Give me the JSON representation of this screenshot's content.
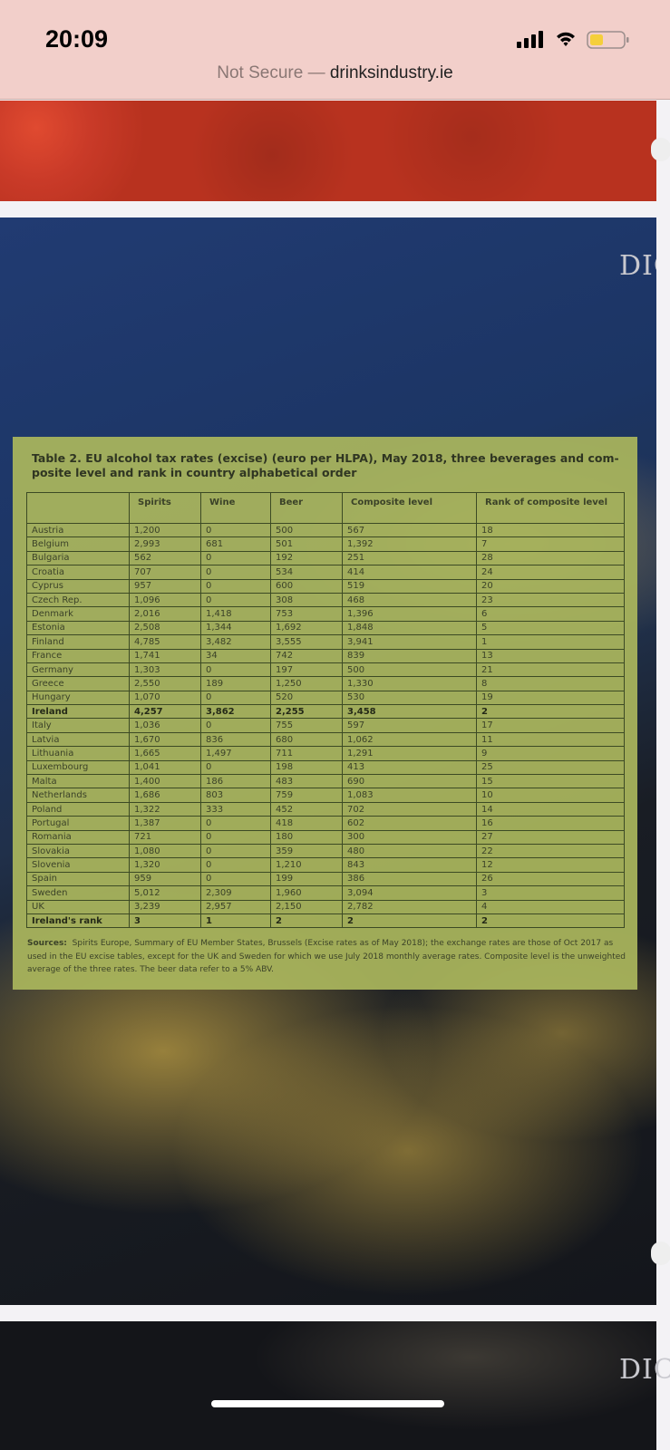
{
  "status_bar": {
    "time": "20:09"
  },
  "address_bar": {
    "security": "Not Secure —",
    "domain": "drinksindustry.ie"
  },
  "page": {
    "logo": "DIC"
  },
  "table": {
    "title_lines": [
      "Table 2. EU alcohol tax rates (excise) (euro per HLPA), May 2018, three beverages and com-",
      "posite level and rank in country alphabetical order"
    ],
    "headers": [
      "",
      "Spirits",
      "Wine",
      "Beer",
      "Composite level",
      "Rank of composite level"
    ],
    "rows": [
      [
        "Austria",
        "1,200",
        "0",
        "500",
        "567",
        "18"
      ],
      [
        "Belgium",
        "2,993",
        "681",
        "501",
        "1,392",
        "7"
      ],
      [
        "Bulgaria",
        "562",
        "0",
        "192",
        "251",
        "28"
      ],
      [
        "Croatia",
        "707",
        "0",
        "534",
        "414",
        "24"
      ],
      [
        "Cyprus",
        "957",
        "0",
        "600",
        "519",
        "20"
      ],
      [
        "Czech Rep.",
        "1,096",
        "0",
        "308",
        "468",
        "23"
      ],
      [
        "Denmark",
        "2,016",
        "1,418",
        "753",
        "1,396",
        "6"
      ],
      [
        "Estonia",
        "2,508",
        "1,344",
        "1,692",
        "1,848",
        "5"
      ],
      [
        "Finland",
        "4,785",
        "3,482",
        "3,555",
        "3,941",
        "1"
      ],
      [
        "France",
        "1,741",
        "34",
        "742",
        "839",
        "13"
      ],
      [
        "Germany",
        "1,303",
        "0",
        "197",
        "500",
        "21"
      ],
      [
        "Greece",
        "2,550",
        "189",
        "1,250",
        "1,330",
        "8"
      ],
      [
        "Hungary",
        "1,070",
        "0",
        "520",
        "530",
        "19"
      ],
      [
        "Ireland",
        "4,257",
        "3,862",
        "2,255",
        "3,458",
        "2"
      ],
      [
        "Italy",
        "1,036",
        "0",
        "755",
        "597",
        "17"
      ],
      [
        "Latvia",
        "1,670",
        "836",
        "680",
        "1,062",
        "11"
      ],
      [
        "Lithuania",
        "1,665",
        "1,497",
        "711",
        "1,291",
        "9"
      ],
      [
        "Luxembourg",
        "1,041",
        "0",
        "198",
        "413",
        "25"
      ],
      [
        "Malta",
        "1,400",
        "186",
        "483",
        "690",
        "15"
      ],
      [
        "Netherlands",
        "1,686",
        "803",
        "759",
        "1,083",
        "10"
      ],
      [
        "Poland",
        "1,322",
        "333",
        "452",
        "702",
        "14"
      ],
      [
        "Portugal",
        "1,387",
        "0",
        "418",
        "602",
        "16"
      ],
      [
        "Romania",
        "721",
        "0",
        "180",
        "300",
        "27"
      ],
      [
        "Slovakia",
        "1,080",
        "0",
        "359",
        "480",
        "22"
      ],
      [
        "Slovenia",
        "1,320",
        "0",
        "1,210",
        "843",
        "12"
      ],
      [
        "Spain",
        "959",
        "0",
        "199",
        "386",
        "26"
      ],
      [
        "Sweden",
        "5,012",
        "2,309",
        "1,960",
        "3,094",
        "3"
      ],
      [
        "UK",
        "3,239",
        "2,957",
        "2,150",
        "2,782",
        "4"
      ],
      [
        "Ireland's rank",
        "3",
        "1",
        "2",
        "2",
        "2"
      ]
    ],
    "sources_label": "Sources:",
    "sources_text": "Spirits Europe, Summary of EU Member States, Brussels (Excise rates as of May 2018); the exchange rates are those of Oct 2017 as used in the EU excise tables, except for the UK and Sweden for which we use July 2018 monthly  average rates. Composite level is the unweighted average of the three rates. The beer data refer to a 5% ABV."
  }
}
